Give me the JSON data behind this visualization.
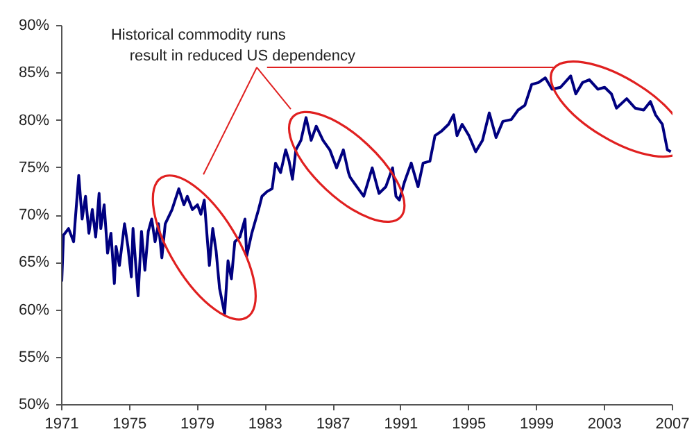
{
  "chart_data": {
    "type": "line",
    "xlim": [
      1971,
      2007
    ],
    "ylim": [
      50,
      90
    ],
    "xticks": [
      1971,
      1975,
      1979,
      1983,
      1987,
      1991,
      1995,
      1999,
      2003,
      2007
    ],
    "yticks": [
      {
        "value": 50,
        "label": "50%"
      },
      {
        "value": 55,
        "label": "55%"
      },
      {
        "value": 60,
        "label": "60%"
      },
      {
        "value": 65,
        "label": "65%"
      },
      {
        "value": 70,
        "label": "70%"
      },
      {
        "value": 75,
        "label": "75%"
      },
      {
        "value": 80,
        "label": "80%"
      },
      {
        "value": 85,
        "label": "85%"
      },
      {
        "value": 90,
        "label": "90%"
      }
    ],
    "annotations": [
      "Historical commodity runs\nresult in reduced US dependency"
    ],
    "series": [
      {
        "color": "#000080",
        "x": [
          1971.0,
          1971.1,
          1971.4,
          1971.7,
          1971.8,
          1972.0,
          1972.2,
          1972.4,
          1972.6,
          1972.8,
          1973.0,
          1973.2,
          1973.3,
          1973.5,
          1973.7,
          1973.9,
          1974.1,
          1974.2,
          1974.4,
          1974.7,
          1974.9,
          1975.1,
          1975.2,
          1975.5,
          1975.7,
          1975.9,
          1976.1,
          1976.3,
          1976.5,
          1976.7,
          1976.9,
          1977.1,
          1977.5,
          1977.9,
          1978.2,
          1978.4,
          1978.7,
          1979.0,
          1979.2,
          1979.4,
          1979.7,
          1979.9,
          1980.1,
          1980.3,
          1980.6,
          1980.8,
          1981.0,
          1981.2,
          1981.5,
          1981.8,
          1981.9,
          1982.2,
          1982.6,
          1982.8,
          1983.1,
          1983.4,
          1983.6,
          1983.9,
          1984.2,
          1984.4,
          1984.6,
          1984.8,
          1985.1,
          1985.4,
          1985.7,
          1986.0,
          1986.4,
          1986.8,
          1987.2,
          1987.6,
          1987.9,
          1988.0,
          1988.4,
          1988.8,
          1989.3,
          1989.7,
          1990.1,
          1990.5,
          1990.7,
          1990.9,
          1991.2,
          1991.6,
          1992.0,
          1992.3,
          1992.7,
          1993.0,
          1993.4,
          1993.8,
          1994.1,
          1994.3,
          1994.6,
          1995.0,
          1995.4,
          1995.8,
          1996.2,
          1996.6,
          1997.0,
          1997.5,
          1997.9,
          1998.3,
          1998.7,
          1999.1,
          1999.5,
          1999.9,
          2000.4,
          2001.0,
          2001.3,
          2001.7,
          2002.1,
          2002.6,
          2003.0,
          2003.4,
          2003.7,
          2004.3,
          2004.8,
          2005.3,
          2005.7,
          2006.0,
          2006.4,
          2006.7,
          2006.9
        ],
        "values": [
          63.0,
          67.9,
          68.6,
          67.2,
          69.6,
          74.2,
          69.6,
          72.0,
          68.1,
          70.6,
          67.7,
          72.3,
          68.6,
          71.1,
          66.0,
          68.1,
          62.8,
          66.7,
          64.7,
          69.1,
          66.7,
          63.5,
          68.6,
          61.5,
          68.3,
          64.2,
          68.3,
          69.6,
          67.2,
          69.1,
          65.5,
          69.1,
          70.6,
          72.8,
          71.1,
          72.0,
          70.6,
          71.1,
          70.1,
          71.6,
          64.7,
          68.6,
          66.2,
          62.3,
          59.6,
          65.2,
          63.3,
          67.2,
          67.7,
          69.6,
          65.7,
          68.1,
          70.6,
          72.0,
          72.5,
          72.8,
          75.5,
          74.5,
          76.9,
          75.7,
          73.8,
          76.9,
          77.9,
          80.3,
          77.9,
          79.4,
          77.9,
          76.9,
          75.0,
          76.9,
          74.5,
          74.0,
          73.0,
          72.0,
          75.0,
          72.3,
          73.0,
          75.0,
          72.0,
          71.6,
          73.5,
          75.5,
          73.0,
          75.5,
          75.7,
          78.4,
          78.9,
          79.6,
          80.6,
          78.4,
          79.6,
          78.4,
          76.7,
          77.9,
          80.8,
          78.2,
          79.9,
          80.1,
          81.1,
          81.6,
          83.8,
          84.0,
          84.5,
          83.3,
          83.5,
          84.7,
          82.8,
          84.0,
          84.3,
          83.3,
          83.5,
          82.8,
          81.3,
          82.3,
          81.3,
          81.1,
          82.0,
          80.6,
          79.6,
          76.9,
          76.7
        ]
      }
    ]
  }
}
